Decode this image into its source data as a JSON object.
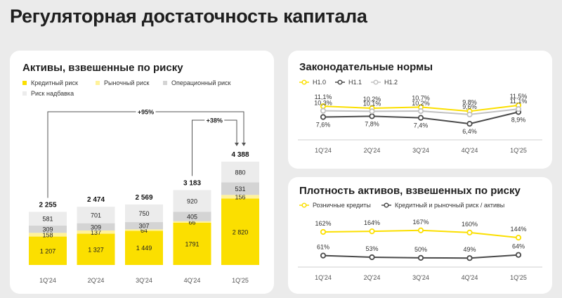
{
  "page_title": "Регуляторная достаточность капитала",
  "colors": {
    "credit": "#fbdf00",
    "market": "#fff29a",
    "operational": "#d4d4d4",
    "premium": "#ececec",
    "h10": "#fbdf00",
    "h11": "#4a4a4a",
    "h12": "#c2c2c2"
  },
  "chart_data": [
    {
      "type": "bar",
      "title": "Активы, взвешенные по риску",
      "categories": [
        "1Q'24",
        "2Q'24",
        "3Q'24",
        "4Q'24",
        "1Q'25"
      ],
      "series": [
        {
          "name": "Кредитный риск",
          "values": [
            1207,
            1327,
            1449,
            1791,
            2820
          ],
          "labels": [
            "1 207",
            "1 327",
            "1 449",
            "1791",
            "2 820"
          ]
        },
        {
          "name": "Рыночный риск",
          "values": [
            158,
            137,
            64,
            66,
            156
          ],
          "labels": [
            "158",
            "137",
            "64",
            "66",
            "156"
          ]
        },
        {
          "name": "Операционный риск",
          "values": [
            309,
            309,
            307,
            405,
            531
          ],
          "labels": [
            "309",
            "309",
            "307",
            "405",
            "531"
          ]
        },
        {
          "name": "Риск надбавка",
          "values": [
            581,
            701,
            750,
            920,
            880
          ],
          "labels": [
            "581",
            "701",
            "750",
            "920",
            "880"
          ]
        }
      ],
      "totals": [
        2255,
        2474,
        2569,
        3183,
        4388
      ],
      "total_labels": [
        "2 255",
        "2 474",
        "2 569",
        "3 183",
        "4 388"
      ],
      "annotations": [
        "+95%",
        "+38%"
      ]
    },
    {
      "type": "line",
      "title": "Законодательные нормы",
      "categories": [
        "1Q'24",
        "2Q'24",
        "3Q'24",
        "4Q'24",
        "1Q'25"
      ],
      "series": [
        {
          "name": "Н1.0",
          "values": [
            11.1,
            10.2,
            10.7,
            9.8,
            11.5
          ],
          "labels": [
            "11,1%",
            "10,2%",
            "10,7%",
            "9,8%",
            "11,5%"
          ]
        },
        {
          "name": "Н1.1",
          "values": [
            7.6,
            7.8,
            7.4,
            6.4,
            8.9
          ],
          "labels": [
            "7,6%",
            "7,8%",
            "7,4%",
            "6,4%",
            "8,9%"
          ]
        },
        {
          "name": "Н1.2",
          "values": [
            10.3,
            10.1,
            10.2,
            9.6,
            11.1
          ],
          "labels": [
            "10,3%",
            "10,1%",
            "10,2%",
            "9,6%",
            "11,1%"
          ]
        }
      ]
    },
    {
      "type": "line",
      "title": "Плотность активов, взвешенных по риску",
      "categories": [
        "1Q'24",
        "2Q'24",
        "3Q'24",
        "4Q'24",
        "1Q'25"
      ],
      "series": [
        {
          "name": "Розничные кредиты",
          "values": [
            162,
            164,
            167,
            160,
            144
          ],
          "labels": [
            "162%",
            "164%",
            "167%",
            "160%",
            "144%"
          ]
        },
        {
          "name": "Кредитный и рыночный риск / активы",
          "values": [
            61,
            53,
            50,
            49,
            64
          ],
          "labels": [
            "61%",
            "53%",
            "50%",
            "49%",
            "64%"
          ]
        }
      ]
    }
  ]
}
